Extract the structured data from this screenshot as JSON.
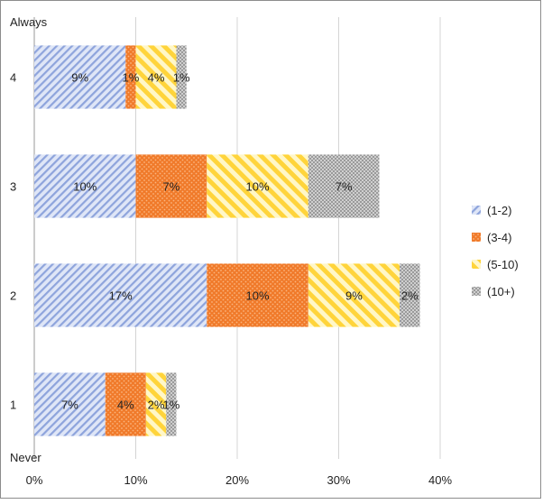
{
  "chart_data": {
    "type": "bar",
    "orientation": "horizontal",
    "stacked": true,
    "categories": [
      "4",
      "3",
      "2",
      "1"
    ],
    "category_order_top_to_bottom": [
      "4",
      "3",
      "2",
      "1"
    ],
    "top_axis_note": "Always",
    "bottom_axis_note": "Never",
    "series": [
      {
        "name": "(1-2)",
        "values": [
          9,
          10,
          17,
          7
        ],
        "labels": [
          "9%",
          "10%",
          "17%",
          "7%"
        ]
      },
      {
        "name": "(3-4)",
        "values": [
          1,
          7,
          10,
          4
        ],
        "labels": [
          "1%",
          "7%",
          "10%",
          "4%"
        ]
      },
      {
        "name": "(5-10)",
        "values": [
          4,
          10,
          9,
          2
        ],
        "labels": [
          "4%",
          "10%",
          "9%",
          "2%"
        ]
      },
      {
        "name": "(10+)",
        "values": [
          1,
          7,
          2,
          1
        ],
        "labels": [
          "1%",
          "7%",
          "2%",
          "1%"
        ]
      }
    ],
    "x_ticks": [
      0,
      10,
      20,
      30,
      40
    ],
    "x_tick_labels": [
      "0%",
      "10%",
      "20%",
      "30%",
      "40%"
    ],
    "xlim": [
      0,
      40
    ],
    "grid": "vertical",
    "legend_position": "right",
    "colors": {
      "(1-2)": "#9fb3e3",
      "(3-4)": "#f07a2a",
      "(5-10)": "#ffd43b",
      "(10+)": "#a8a8a8"
    }
  }
}
